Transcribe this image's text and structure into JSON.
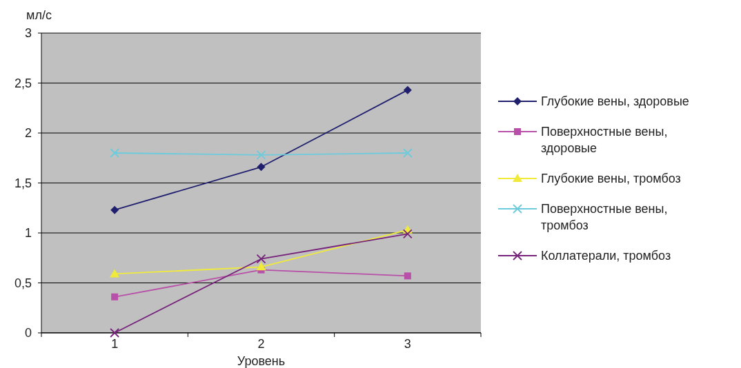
{
  "chart_data": {
    "type": "line",
    "xlabel": "Уровень",
    "ylabel": "мл/с",
    "categories": [
      "1",
      "2",
      "3"
    ],
    "series": [
      {
        "name": "Глубокие вены, здоровые",
        "color": "#1f1f6e",
        "marker": "diamond",
        "values": [
          1.23,
          1.66,
          2.43
        ]
      },
      {
        "name": "Поверхностные вены, здоровые",
        "color": "#b84fa8",
        "marker": "square",
        "values": [
          0.36,
          0.63,
          0.57
        ]
      },
      {
        "name": "Глубокие вены, тромбоз",
        "color": "#f0eb3a",
        "marker": "triangle",
        "values": [
          0.59,
          0.66,
          1.03
        ]
      },
      {
        "name": "Поверхностные вены, тромбоз",
        "color": "#6ccbdc",
        "marker": "cross",
        "values": [
          1.8,
          1.78,
          1.8
        ]
      },
      {
        "name": "Коллатерали, тромбоз",
        "color": "#76217a",
        "marker": "cross",
        "values": [
          0,
          0.74,
          0.99
        ]
      }
    ],
    "ylim": [
      0,
      3
    ],
    "yticks": [
      0,
      {
        "value": 0.5,
        "label": "0,5"
      },
      1,
      {
        "value": 1.5,
        "label": "1,5"
      },
      2,
      {
        "value": 2.5,
        "label": "2,5"
      },
      3
    ],
    "grid": "y",
    "legend": "right"
  }
}
